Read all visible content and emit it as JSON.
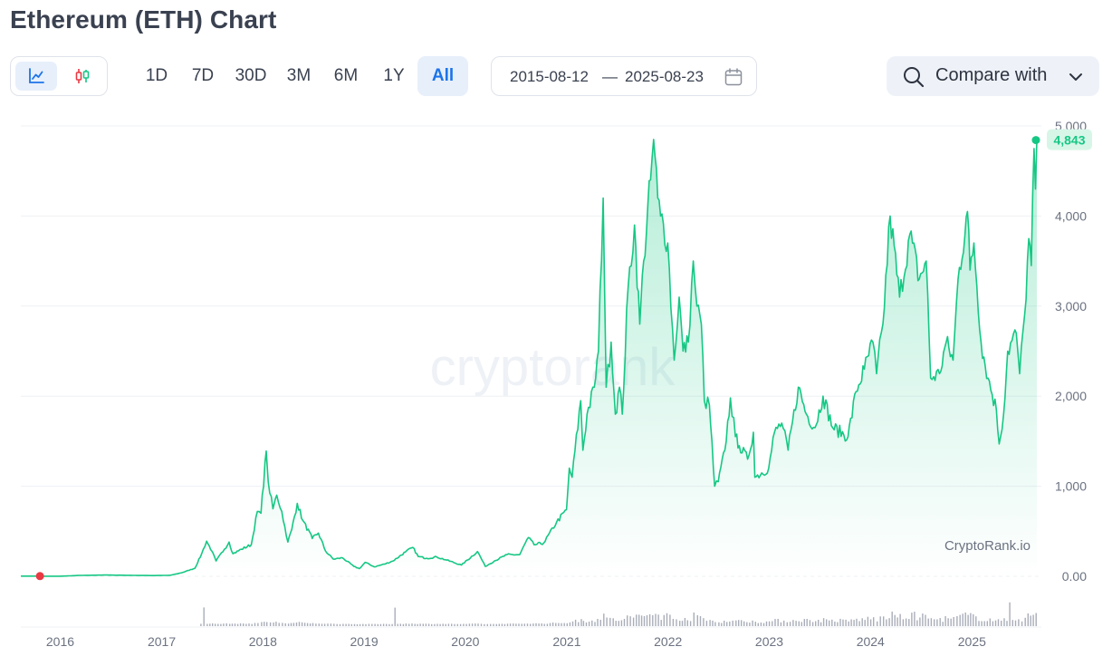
{
  "page": {
    "title": "Ethereum (ETH) Chart"
  },
  "toolbar": {
    "chart_types": [
      {
        "name": "line-chart",
        "icon": "line-chart-icon",
        "active": true
      },
      {
        "name": "candlestick-chart",
        "icon": "candlestick-icon",
        "active": false
      }
    ],
    "ranges": [
      {
        "label": "1D",
        "active": false
      },
      {
        "label": "7D",
        "active": false
      },
      {
        "label": "30D",
        "active": false
      },
      {
        "label": "3M",
        "active": false
      },
      {
        "label": "6M",
        "active": false
      },
      {
        "label": "1Y",
        "active": false
      },
      {
        "label": "All",
        "active": true
      }
    ],
    "date_from": "2015-08-12",
    "date_sep": "—",
    "date_to": "2025-08-23",
    "compare_label": "Compare with"
  },
  "colors": {
    "line": "#16c784",
    "area_top": "#16c784",
    "start_dot": "#ea3943",
    "volume": "#a9adb8",
    "accent": "#1c74e9"
  },
  "watermark": "cryptorank",
  "credit": "CryptoRank.io",
  "chart_data": {
    "type": "line",
    "series_name": "",
    "x_axis": {
      "type": "date",
      "ticks": [
        "2016",
        "2017",
        "2018",
        "2019",
        "2020",
        "2021",
        "2022",
        "2023",
        "2024",
        "2025"
      ]
    },
    "y_axis": {
      "position": "right",
      "ylim": [
        0,
        5000
      ],
      "tick_values": [
        0,
        1000,
        2000,
        3000,
        4000,
        5000
      ],
      "tick_labels": [
        "0.00",
        "1,000",
        "2,000",
        "3,000",
        "4,000",
        "5,000"
      ]
    },
    "grid": true,
    "last_value_label": "4,843",
    "points": [
      [
        "2015-08-12",
        2
      ],
      [
        "2016-01-01",
        1
      ],
      [
        "2016-03-15",
        10
      ],
      [
        "2016-06-15",
        14
      ],
      [
        "2016-09-01",
        11
      ],
      [
        "2016-12-01",
        8
      ],
      [
        "2017-02-01",
        11
      ],
      [
        "2017-03-15",
        40
      ],
      [
        "2017-05-01",
        90
      ],
      [
        "2017-05-25",
        250
      ],
      [
        "2017-06-12",
        390
      ],
      [
        "2017-07-01",
        280
      ],
      [
        "2017-07-16",
        170
      ],
      [
        "2017-08-15",
        300
      ],
      [
        "2017-09-01",
        380
      ],
      [
        "2017-09-15",
        250
      ],
      [
        "2017-10-15",
        300
      ],
      [
        "2017-11-20",
        350
      ],
      [
        "2017-12-12",
        720
      ],
      [
        "2017-12-25",
        700
      ],
      [
        "2018-01-13",
        1390
      ],
      [
        "2018-01-20",
        1050
      ],
      [
        "2018-02-06",
        750
      ],
      [
        "2018-02-20",
        900
      ],
      [
        "2018-03-10",
        720
      ],
      [
        "2018-04-01",
        380
      ],
      [
        "2018-04-15",
        520
      ],
      [
        "2018-05-05",
        810
      ],
      [
        "2018-05-25",
        620
      ],
      [
        "2018-06-28",
        420
      ],
      [
        "2018-07-20",
        480
      ],
      [
        "2018-08-15",
        280
      ],
      [
        "2018-09-12",
        190
      ],
      [
        "2018-10-15",
        205
      ],
      [
        "2018-11-25",
        110
      ],
      [
        "2018-12-15",
        85
      ],
      [
        "2019-01-05",
        155
      ],
      [
        "2019-02-07",
        105
      ],
      [
        "2019-03-15",
        135
      ],
      [
        "2019-04-15",
        170
      ],
      [
        "2019-05-30",
        270
      ],
      [
        "2019-06-26",
        320
      ],
      [
        "2019-07-15",
        220
      ],
      [
        "2019-08-15",
        200
      ],
      [
        "2019-09-20",
        215
      ],
      [
        "2019-10-25",
        180
      ],
      [
        "2019-12-18",
        125
      ],
      [
        "2020-02-14",
        275
      ],
      [
        "2020-03-13",
        110
      ],
      [
        "2020-04-15",
        170
      ],
      [
        "2020-05-30",
        240
      ],
      [
        "2020-07-15",
        240
      ],
      [
        "2020-08-15",
        430
      ],
      [
        "2020-09-05",
        350
      ],
      [
        "2020-10-10",
        370
      ],
      [
        "2020-11-25",
        600
      ],
      [
        "2020-12-31",
        740
      ],
      [
        "2021-01-10",
        1200
      ],
      [
        "2021-01-20",
        1100
      ],
      [
        "2021-02-20",
        1950
      ],
      [
        "2021-02-28",
        1400
      ],
      [
        "2021-03-15",
        1800
      ],
      [
        "2021-04-10",
        2100
      ],
      [
        "2021-04-25",
        2500
      ],
      [
        "2021-05-12",
        4200
      ],
      [
        "2021-05-23",
        2100
      ],
      [
        "2021-06-10",
        2600
      ],
      [
        "2021-06-25",
        1800
      ],
      [
        "2021-07-10",
        2100
      ],
      [
        "2021-07-20",
        1800
      ],
      [
        "2021-08-10",
        3200
      ],
      [
        "2021-09-02",
        3900
      ],
      [
        "2021-09-21",
        2800
      ],
      [
        "2021-10-05",
        3500
      ],
      [
        "2021-10-30",
        4400
      ],
      [
        "2021-11-10",
        4850
      ],
      [
        "2021-11-25",
        4200
      ],
      [
        "2021-12-05",
        4000
      ],
      [
        "2021-12-31",
        3700
      ],
      [
        "2022-01-23",
        2400
      ],
      [
        "2022-02-10",
        3100
      ],
      [
        "2022-02-24",
        2500
      ],
      [
        "2022-03-15",
        2600
      ],
      [
        "2022-04-02",
        3500
      ],
      [
        "2022-04-15",
        3000
      ],
      [
        "2022-05-01",
        2800
      ],
      [
        "2022-05-12",
        1950
      ],
      [
        "2022-05-30",
        1900
      ],
      [
        "2022-06-18",
        1000
      ],
      [
        "2022-07-01",
        1050
      ],
      [
        "2022-07-25",
        1400
      ],
      [
        "2022-08-14",
        1980
      ],
      [
        "2022-09-01",
        1550
      ],
      [
        "2022-09-15",
        1450
      ],
      [
        "2022-10-15",
        1300
      ],
      [
        "2022-11-05",
        1600
      ],
      [
        "2022-11-10",
        1100
      ],
      [
        "2022-12-30",
        1200
      ],
      [
        "2023-01-20",
        1600
      ],
      [
        "2023-02-15",
        1700
      ],
      [
        "2023-03-10",
        1400
      ],
      [
        "2023-04-16",
        2100
      ],
      [
        "2023-05-15",
        1800
      ],
      [
        "2023-06-15",
        1650
      ],
      [
        "2023-07-14",
        2000
      ],
      [
        "2023-08-18",
        1650
      ],
      [
        "2023-10-12",
        1550
      ],
      [
        "2023-11-10",
        2050
      ],
      [
        "2023-12-10",
        2300
      ],
      [
        "2024-01-10",
        2600
      ],
      [
        "2024-01-23",
        2250
      ],
      [
        "2024-02-15",
        2800
      ],
      [
        "2024-03-12",
        4000
      ],
      [
        "2024-04-15",
        3100
      ],
      [
        "2024-05-22",
        3800
      ],
      [
        "2024-06-25",
        3300
      ],
      [
        "2024-07-20",
        3500
      ],
      [
        "2024-08-05",
        2200
      ],
      [
        "2024-09-06",
        2250
      ],
      [
        "2024-09-30",
        2600
      ],
      [
        "2024-10-25",
        2400
      ],
      [
        "2024-11-12",
        3300
      ],
      [
        "2024-12-16",
        4050
      ],
      [
        "2024-12-25",
        3400
      ],
      [
        "2025-01-08",
        3700
      ],
      [
        "2025-02-03",
        2600
      ],
      [
        "2025-02-28",
        2200
      ],
      [
        "2025-03-30",
        1850
      ],
      [
        "2025-04-09",
        1470
      ],
      [
        "2025-04-25",
        1800
      ],
      [
        "2025-05-10",
        2500
      ],
      [
        "2025-06-10",
        2700
      ],
      [
        "2025-06-22",
        2250
      ],
      [
        "2025-07-10",
        2900
      ],
      [
        "2025-07-25",
        3750
      ],
      [
        "2025-08-03",
        3450
      ],
      [
        "2025-08-13",
        4750
      ],
      [
        "2025-08-18",
        4300
      ],
      [
        "2025-08-23",
        4843
      ]
    ],
    "volume_note": ""
  }
}
